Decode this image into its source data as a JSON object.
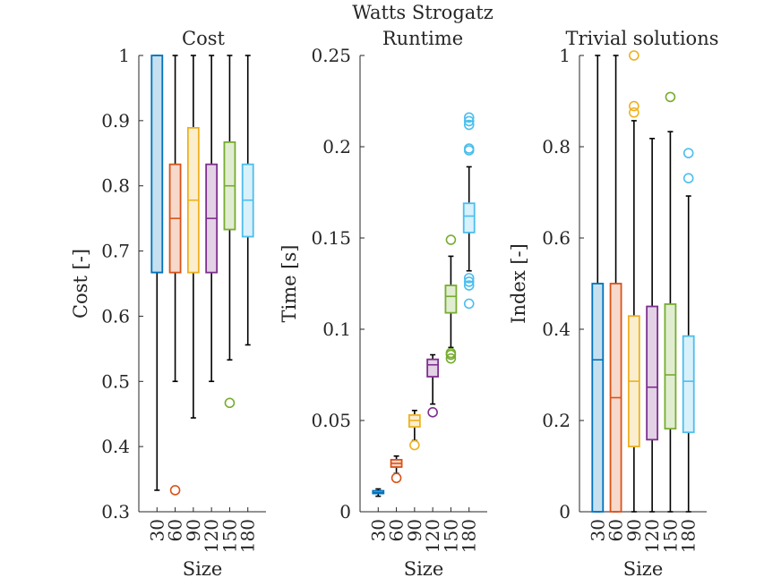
{
  "figure": {
    "suptitle": "Watts Strogatz"
  },
  "colors": {
    "30": "#0072BD",
    "60": "#D95319",
    "90": "#EDB120",
    "120": "#7E2F8E",
    "150": "#77AC30",
    "180": "#4DBEEE",
    "whisker": "#000000",
    "axis": "#262626"
  },
  "chart_data": [
    {
      "type": "box",
      "title": "Cost",
      "xlabel": "Size",
      "ylabel": "Cost [-]",
      "ylim": [
        0.3,
        1.0
      ],
      "yticks": [
        "0.3",
        "0.4",
        "0.5",
        "0.6",
        "0.7",
        "0.8",
        "0.9",
        "1"
      ],
      "yticks_val": [
        0.3,
        0.4,
        0.5,
        0.6,
        0.7,
        0.8,
        0.9,
        1.0
      ],
      "categories": [
        "30",
        "60",
        "90",
        "120",
        "150",
        "180"
      ],
      "boxes": [
        {
          "q1": 0.667,
          "median": 0.667,
          "q3": 1.0,
          "whisker_low": 0.333,
          "whisker_high": 1.0,
          "outliers": []
        },
        {
          "q1": 0.667,
          "median": 0.75,
          "q3": 0.833,
          "whisker_low": 0.5,
          "whisker_high": 1.0,
          "outliers": [
            0.333
          ]
        },
        {
          "q1": 0.667,
          "median": 0.778,
          "q3": 0.889,
          "whisker_low": 0.444,
          "whisker_high": 1.0,
          "outliers": []
        },
        {
          "q1": 0.667,
          "median": 0.75,
          "q3": 0.833,
          "whisker_low": 0.5,
          "whisker_high": 1.0,
          "outliers": []
        },
        {
          "q1": 0.733,
          "median": 0.8,
          "q3": 0.867,
          "whisker_low": 0.533,
          "whisker_high": 1.0,
          "outliers": [
            0.467
          ]
        },
        {
          "q1": 0.722,
          "median": 0.778,
          "q3": 0.833,
          "whisker_low": 0.556,
          "whisker_high": 1.0,
          "outliers": []
        }
      ]
    },
    {
      "type": "box",
      "title": "Runtime",
      "xlabel": "Size",
      "ylabel": "Time [s]",
      "ylim": [
        0,
        0.25
      ],
      "yticks": [
        "0",
        "0.05",
        "0.1",
        "0.15",
        "0.2",
        "0.25"
      ],
      "yticks_val": [
        0,
        0.05,
        0.1,
        0.15,
        0.2,
        0.25
      ],
      "categories": [
        "30",
        "60",
        "90",
        "120",
        "150",
        "180"
      ],
      "boxes": [
        {
          "q1": 0.01,
          "median": 0.0105,
          "q3": 0.0115,
          "whisker_low": 0.0085,
          "whisker_high": 0.0125,
          "outliers": []
        },
        {
          "q1": 0.0245,
          "median": 0.0265,
          "q3": 0.0285,
          "whisker_low": 0.021,
          "whisker_high": 0.0305,
          "outliers": [
            0.0185
          ]
        },
        {
          "q1": 0.0465,
          "median": 0.05,
          "q3": 0.053,
          "whisker_low": 0.039,
          "whisker_high": 0.0555,
          "outliers": [
            0.0365
          ]
        },
        {
          "q1": 0.074,
          "median": 0.0805,
          "q3": 0.0835,
          "whisker_low": 0.059,
          "whisker_high": 0.086,
          "outliers": [
            0.0545
          ]
        },
        {
          "q1": 0.109,
          "median": 0.118,
          "q3": 0.124,
          "whisker_low": 0.09,
          "whisker_high": 0.14,
          "outliers": [
            0.084,
            0.086,
            0.087,
            0.149
          ]
        },
        {
          "q1": 0.153,
          "median": 0.162,
          "q3": 0.169,
          "whisker_low": 0.132,
          "whisker_high": 0.189,
          "outliers": [
            0.114,
            0.124,
            0.126,
            0.128,
            0.198,
            0.199,
            0.212,
            0.214,
            0.216
          ]
        }
      ]
    },
    {
      "type": "box",
      "title": "Trivial solutions",
      "xlabel": "Size",
      "ylabel": "Index [-]",
      "ylim": [
        0,
        1.0
      ],
      "yticks": [
        "0",
        "0.2",
        "0.4",
        "0.6",
        "0.8",
        "1"
      ],
      "yticks_val": [
        0,
        0.2,
        0.4,
        0.6,
        0.8,
        1.0
      ],
      "categories": [
        "30",
        "60",
        "90",
        "120",
        "150",
        "180"
      ],
      "boxes": [
        {
          "q1": 0.0,
          "median": 0.333,
          "q3": 0.5,
          "whisker_low": 0.0,
          "whisker_high": 1.0,
          "outliers": []
        },
        {
          "q1": 0.0,
          "median": 0.25,
          "q3": 0.5,
          "whisker_low": 0.0,
          "whisker_high": 1.0,
          "outliers": []
        },
        {
          "q1": 0.143,
          "median": 0.286,
          "q3": 0.429,
          "whisker_low": 0.0,
          "whisker_high": 0.857,
          "outliers": [
            0.875,
            0.889,
            1.0
          ]
        },
        {
          "q1": 0.158,
          "median": 0.273,
          "q3": 0.45,
          "whisker_low": 0.0,
          "whisker_high": 0.818,
          "outliers": []
        },
        {
          "q1": 0.182,
          "median": 0.3,
          "q3": 0.455,
          "whisker_low": 0.0,
          "whisker_high": 0.833,
          "outliers": [
            0.909
          ]
        },
        {
          "q1": 0.174,
          "median": 0.286,
          "q3": 0.385,
          "whisker_low": 0.0,
          "whisker_high": 0.692,
          "outliers": [
            0.731,
            0.786
          ]
        }
      ]
    }
  ]
}
